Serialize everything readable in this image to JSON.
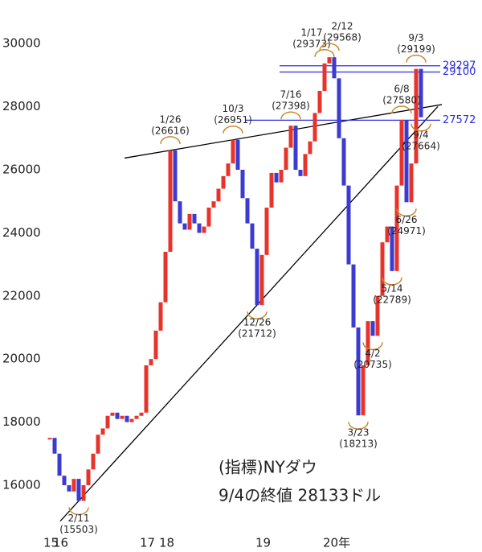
{
  "chart_data": {
    "type": "candle",
    "categories": [
      "15",
      null,
      "16",
      null,
      null,
      null,
      null,
      null,
      null,
      null,
      null,
      null,
      null,
      null,
      null,
      null,
      null,
      null,
      null,
      null,
      "17",
      null,
      null,
      null,
      "18",
      null,
      null,
      null,
      null,
      null,
      null,
      null,
      null,
      null,
      null,
      null,
      null,
      null,
      null,
      null,
      null,
      null,
      null,
      null,
      "19",
      null,
      null,
      null,
      null,
      null,
      null,
      null,
      null,
      null,
      null,
      null,
      null,
      null,
      "20年",
      null,
      null,
      null,
      null,
      null,
      null,
      null,
      null,
      null,
      null,
      null,
      null,
      null,
      null,
      null,
      null,
      null,
      null,
      null
    ],
    "values": [
      17500,
      17000,
      16300,
      16000,
      15800,
      16200,
      15503,
      16000,
      16500,
      17000,
      17600,
      17800,
      18200,
      18300,
      18100,
      18200,
      18000,
      18100,
      18200,
      18300,
      19800,
      20000,
      20900,
      21800,
      23400,
      26616,
      25000,
      24300,
      24100,
      24600,
      24300,
      24000,
      24200,
      24800,
      25000,
      25400,
      25800,
      26200,
      26951,
      26000,
      25100,
      24300,
      23500,
      21712,
      23300,
      24800,
      25900,
      25600,
      26000,
      26700,
      27398,
      26000,
      25800,
      26500,
      26900,
      27800,
      28500,
      29373,
      29568,
      28900,
      27000,
      25500,
      23000,
      21000,
      18213,
      19800,
      21200,
      20735,
      22000,
      23700,
      24200,
      22789,
      25500,
      27580,
      24971,
      26200,
      29199,
      27664
    ],
    "up_color": "#e8332a",
    "down_color": "#3b3bd1",
    "ylim": [
      14800,
      31000
    ],
    "yticks": [
      16000,
      18000,
      20000,
      22000,
      24000,
      26000,
      28000,
      30000
    ],
    "annotations": [
      {
        "text": "2/11",
        "value": 15503,
        "label": "(15503)"
      },
      {
        "text": "1/26",
        "value": 26616,
        "label": "(26616)"
      },
      {
        "text": "10/3",
        "value": 26951,
        "label": "(26951)"
      },
      {
        "text": "12/26",
        "value": 21712,
        "label": "(21712)"
      },
      {
        "text": "7/16",
        "value": 27398,
        "label": "(27398)"
      },
      {
        "text": "1/17",
        "value": 29373,
        "label": "(29373)"
      },
      {
        "text": "2/12",
        "value": 29568,
        "label": "(29568)"
      },
      {
        "text": "3/23",
        "value": 18213,
        "label": "(18213)"
      },
      {
        "text": "4/2",
        "value": 20735,
        "label": "(20735)"
      },
      {
        "text": "5/14",
        "value": 22789,
        "label": "(22789)"
      },
      {
        "text": "6/8",
        "value": 27580,
        "label": "(27580)"
      },
      {
        "text": "6/26",
        "value": 24971,
        "label": "(24971)"
      },
      {
        "text": "9/3",
        "value": 29199,
        "label": "(29199)"
      },
      {
        "text": "9/4",
        "value": 27664,
        "label": "(27664)"
      }
    ],
    "hlines": [
      29297,
      29100,
      27572
    ],
    "hline_color": "#2b2be0",
    "note": [
      "(指標)NYダウ",
      "9/4の終値 28133ドル"
    ]
  }
}
